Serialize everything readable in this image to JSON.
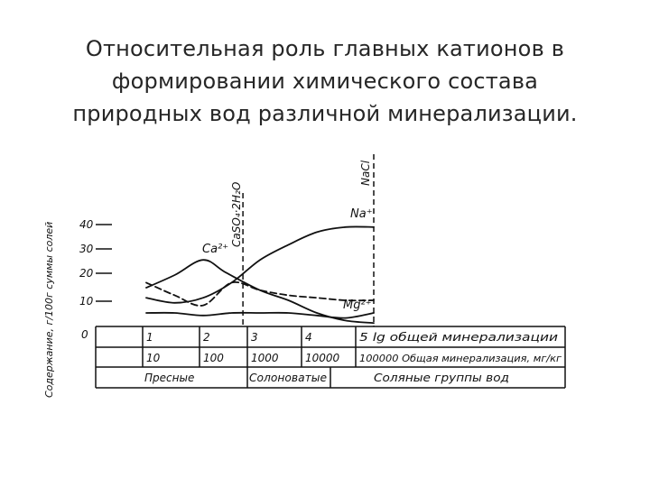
{
  "slide": {
    "title_lines": [
      "Относительная роль главных катионов в",
      "формировании химического состава",
      "природных вод различной минерализации."
    ]
  },
  "colors": {
    "ink": "#111111",
    "title": "#262626",
    "background": "#ffffff"
  },
  "chart_data": {
    "type": "line",
    "ylabel": "Содержание, г/100г суммы солей",
    "y_ticks": [
      "40",
      "30",
      "20",
      "10",
      "0"
    ],
    "ylim": [
      0,
      40
    ],
    "x_scale": "log",
    "xlim_lg": [
      1,
      5
    ],
    "series": [
      {
        "name": "Ca²⁺",
        "x_lg": [
          1.0,
          1.5,
          2.0,
          2.4,
          3.0,
          3.5,
          4.0,
          4.5,
          5.0
        ],
        "y": [
          15,
          20,
          26,
          21,
          14,
          10,
          5,
          2,
          1
        ]
      },
      {
        "name": "Na⁺",
        "x_lg": [
          1.0,
          1.5,
          2.0,
          2.5,
          3.0,
          3.5,
          4.0,
          4.5,
          5.0
        ],
        "y": [
          11,
          9,
          11,
          17,
          26,
          32,
          37,
          39,
          39
        ]
      },
      {
        "name": "Mg²⁺",
        "x_lg": [
          1.0,
          1.5,
          2.0,
          2.5,
          3.0,
          3.5,
          4.0,
          4.5,
          5.0
        ],
        "y": [
          17,
          12,
          8,
          17,
          14,
          12,
          11,
          10,
          10
        ]
      },
      {
        "name": "",
        "x_lg": [
          1.0,
          1.5,
          2.0,
          2.5,
          3.0,
          3.5,
          4.0,
          4.5,
          5.0
        ],
        "y": [
          5,
          5,
          4,
          5,
          5,
          5,
          4,
          3,
          5
        ]
      }
    ],
    "boundaries": [
      {
        "x_lg": 2.7,
        "label": "CaSO₄·2H₂O"
      },
      {
        "x_lg": 5.0,
        "label": "NaCl"
      }
    ],
    "table": {
      "row1": [
        "1",
        "2",
        "3",
        "4",
        "5 lg общей минерализации"
      ],
      "row2": [
        "10",
        "100",
        "1000",
        "10000",
        "100000 Общая минерализация, мг/кг"
      ],
      "row3": [
        "Пресные",
        "Солоноватые",
        "Соляные группы вод"
      ]
    }
  }
}
